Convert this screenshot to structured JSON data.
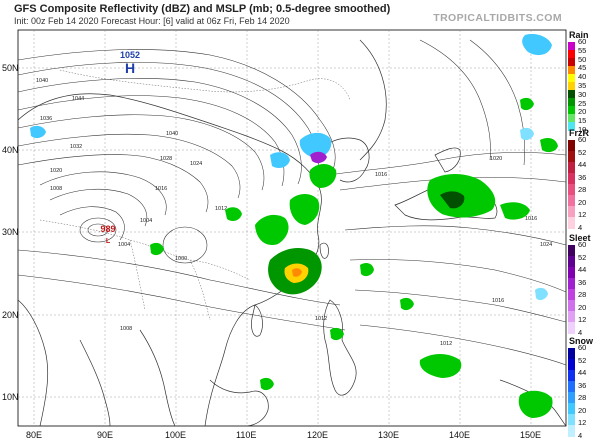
{
  "header": {
    "title": "GFS Composite Reflectivity (dBZ) and MSLP (mb; 0.5-degree smoothed)",
    "subtitle": "Init: 00z Feb 14 2020   Forecast Hour: [6]   valid at 06z Fri, Feb 14 2020",
    "brand": "TROPICALTIDBITS.COM"
  },
  "axes": {
    "latitudes": [
      "50N",
      "40N",
      "30N",
      "20N",
      "10N"
    ],
    "longitudes": [
      "80E",
      "90E",
      "100E",
      "110E",
      "120E",
      "130E",
      "140E",
      "150E"
    ]
  },
  "pressure_centers": [
    {
      "type": "H",
      "value": "1052"
    },
    {
      "type": "L",
      "value": "989"
    }
  ],
  "isobar_labels": [
    "1040",
    "1036",
    "1044",
    "1040",
    "1032",
    "1028",
    "1024",
    "1020",
    "1016",
    "1012",
    "1008",
    "1004",
    "1000",
    "1016",
    "1020",
    "1024",
    "1016",
    "1012",
    "1008",
    "1016",
    "1004",
    "1012"
  ],
  "legends": [
    {
      "name": "Rain",
      "ticks": [
        "60",
        "55",
        "50",
        "45",
        "40",
        "35",
        "30",
        "25",
        "20",
        "15",
        "10"
      ],
      "colors": [
        "#c800c8",
        "#ff0000",
        "#c80000",
        "#ff8c00",
        "#ffff00",
        "#ffd200",
        "#005000",
        "#009600",
        "#00c800",
        "#64e664",
        "#50e6f0"
      ]
    },
    {
      "name": "FrzR",
      "ticks": [
        "60",
        "52",
        "44",
        "36",
        "28",
        "20",
        "12",
        "4"
      ],
      "colors": [
        "#800000",
        "#a01010",
        "#c02040",
        "#d83060",
        "#e85080",
        "#f070a0",
        "#f8a0c0",
        "#ffd0e0"
      ]
    },
    {
      "name": "Sleet",
      "ticks": [
        "60",
        "52",
        "44",
        "36",
        "28",
        "20",
        "12",
        "4"
      ],
      "colors": [
        "#400060",
        "#600090",
        "#8000b0",
        "#a020d0",
        "#c040e0",
        "#d070ec",
        "#e0a0f4",
        "#f0d0fc"
      ]
    },
    {
      "name": "Snow",
      "ticks": [
        "60",
        "52",
        "44",
        "36",
        "28",
        "20",
        "12",
        "4"
      ],
      "colors": [
        "#0000a0",
        "#0000d0",
        "#1030f0",
        "#2070ff",
        "#30a0ff",
        "#40c8ff",
        "#80e0ff",
        "#c0f0ff"
      ]
    }
  ]
}
